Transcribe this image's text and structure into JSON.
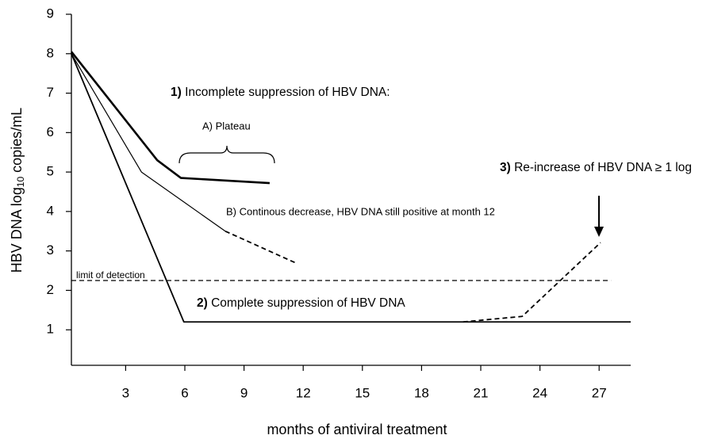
{
  "chart_data": {
    "type": "line",
    "ylabel": {
      "main": "HBV DNA log",
      "sub": "10",
      "rest": " copies/mL"
    },
    "xlabel": "months of antiviral treatment",
    "xlim": [
      0.25,
      28.6
    ],
    "ylim": [
      0.1,
      9
    ],
    "xticks": [
      3,
      6,
      9,
      12,
      15,
      18,
      21,
      24,
      27
    ],
    "yticks": [
      1,
      2,
      3,
      4,
      5,
      6,
      7,
      8,
      9
    ],
    "series": [
      {
        "x": [
          0.25,
          4.6,
          5.8,
          10.3
        ],
        "values": [
          8.05,
          5.3,
          4.85,
          4.72
        ],
        "color": "#000000",
        "width": 2.6,
        "dashed": false
      },
      {
        "x": [
          0.25,
          3.8,
          8.05
        ],
        "values": [
          8.0,
          5.0,
          3.5
        ],
        "color": "#000000",
        "width": 1.2,
        "dashed": false
      },
      {
        "x": [
          8.05,
          11.6
        ],
        "values": [
          3.5,
          2.7
        ],
        "color": "#000000",
        "width": 1.8,
        "dashed": true
      },
      {
        "x": [
          0.25,
          5.95,
          28.6
        ],
        "values": [
          8.0,
          1.2,
          1.2
        ],
        "color": "#000000",
        "width": 1.8,
        "dashed": false
      },
      {
        "x": [
          20.1,
          23.1,
          27.07
        ],
        "values": [
          1.2,
          1.34,
          3.21
        ],
        "color": "#000000",
        "width": 1.8,
        "dashed": true
      },
      {
        "x": [
          0.25,
          27.6
        ],
        "values": [
          2.25,
          2.25
        ],
        "color": "#000000",
        "width": 1.2,
        "dashed": true
      }
    ],
    "annotations": [
      {
        "prefix": "1)",
        "text": "Incomplete suppression of HBV DNA:"
      },
      {
        "text": "A) Plateau"
      },
      {
        "text": "B) Continous decrease, HBV DNA still positive at month 12"
      },
      {
        "text": "limit of detection"
      },
      {
        "prefix": "2)",
        "text": "Complete suppression of HBV DNA"
      },
      {
        "prefix": "3)",
        "text": "Re-increase of HBV DNA ≥ 1 log"
      }
    ]
  }
}
